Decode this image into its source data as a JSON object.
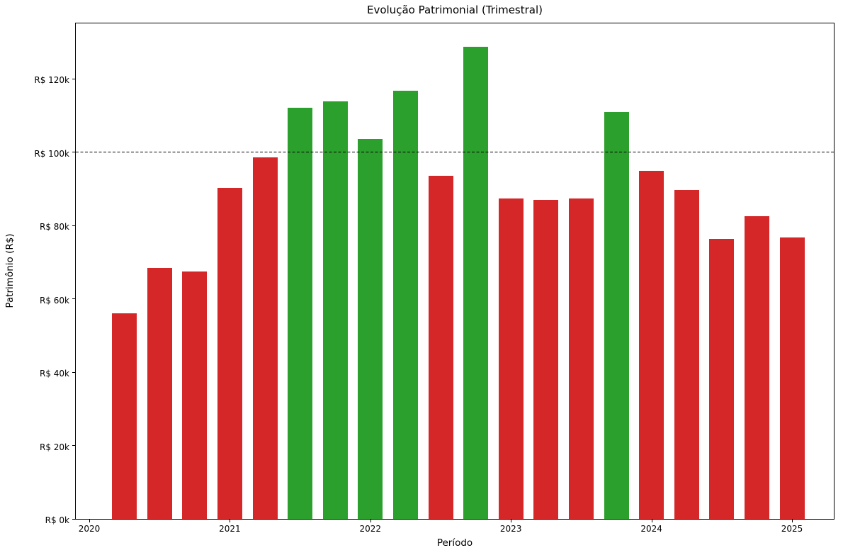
{
  "chart_data": {
    "type": "bar",
    "title": "Evolução Patrimonial (Trimestral)",
    "xlabel": "Período",
    "ylabel": "Patrimônio (R$)",
    "ylim": [
      0,
      135500
    ],
    "grid": false,
    "legend": null,
    "y_ticks": [
      {
        "value": 0,
        "label": "R$ 0k"
      },
      {
        "value": 20000,
        "label": "R$ 20k"
      },
      {
        "value": 40000,
        "label": "R$ 40k"
      },
      {
        "value": 60000,
        "label": "R$ 60k"
      },
      {
        "value": 80000,
        "label": "R$ 80k"
      },
      {
        "value": 100000,
        "label": "R$ 100k"
      },
      {
        "value": 120000,
        "label": "R$ 120k"
      }
    ],
    "x_tick_labels": [
      "2020",
      "2021",
      "2022",
      "2023",
      "2024",
      "2025"
    ],
    "goal_line": {
      "value": 100000,
      "style": "dashed",
      "color": "#000000"
    },
    "colors": {
      "above_goal": "#2ca02c",
      "below_goal": "#d62728"
    },
    "points": [
      {
        "quarter": "2020-Q2",
        "value": 56000
      },
      {
        "quarter": "2020-Q3",
        "value": 68500
      },
      {
        "quarter": "2020-Q4",
        "value": 67400
      },
      {
        "quarter": "2021-Q1",
        "value": 90200
      },
      {
        "quarter": "2021-Q2",
        "value": 98500
      },
      {
        "quarter": "2021-Q3",
        "value": 112100
      },
      {
        "quarter": "2021-Q4",
        "value": 113800
      },
      {
        "quarter": "2022-Q1",
        "value": 103700
      },
      {
        "quarter": "2022-Q2",
        "value": 116700
      },
      {
        "quarter": "2022-Q3",
        "value": 93500
      },
      {
        "quarter": "2022-Q4",
        "value": 128700
      },
      {
        "quarter": "2023-Q1",
        "value": 87300
      },
      {
        "quarter": "2023-Q2",
        "value": 86900
      },
      {
        "quarter": "2023-Q3",
        "value": 87400
      },
      {
        "quarter": "2023-Q4",
        "value": 110900
      },
      {
        "quarter": "2024-Q1",
        "value": 95000
      },
      {
        "quarter": "2024-Q2",
        "value": 89600
      },
      {
        "quarter": "2024-Q3",
        "value": 76300
      },
      {
        "quarter": "2024-Q4",
        "value": 82500
      },
      {
        "quarter": "2025-Q1",
        "value": 76800
      }
    ]
  }
}
